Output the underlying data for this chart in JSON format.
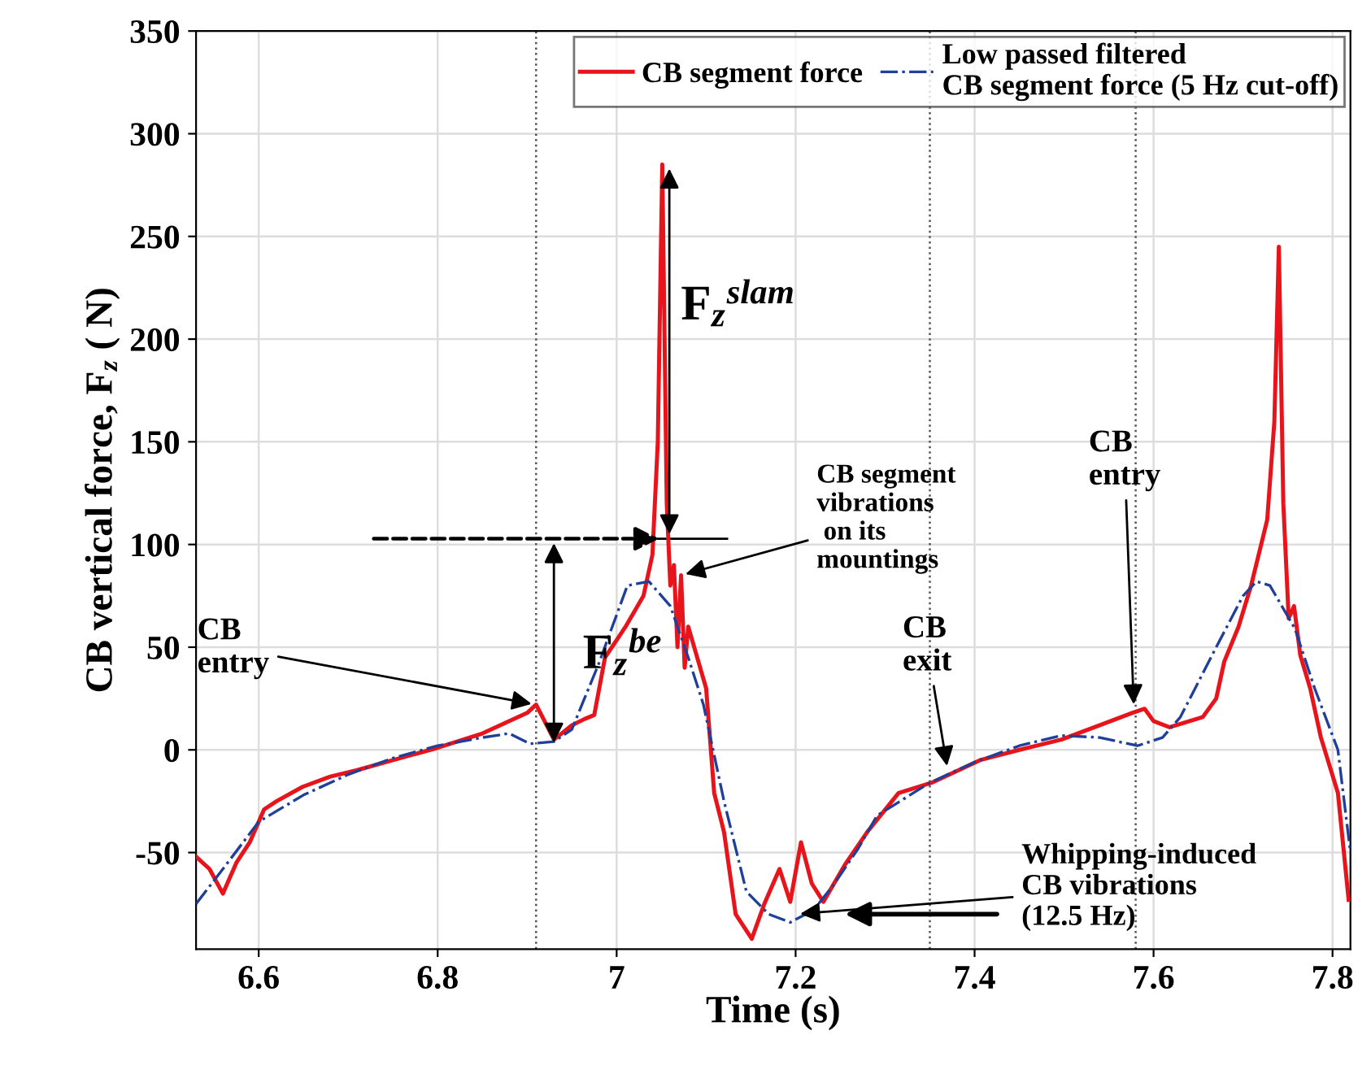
{
  "chart_data": {
    "type": "line",
    "xlabel": "Time (s)",
    "ylabel": "CB vertical force, F$_{z}$ ( N)",
    "xlim": [
      6.53,
      7.82
    ],
    "ylim": [
      -97,
      350
    ],
    "xticks": [
      6.6,
      6.8,
      7,
      7.2,
      7.4,
      7.6,
      7.8
    ],
    "yticks": [
      -50,
      0,
      50,
      100,
      150,
      200,
      250,
      300,
      350
    ],
    "grid": true,
    "legend": "top right",
    "series": [
      {
        "name": "CB segment force",
        "color": "#e8141c",
        "line_style": "solid",
        "x": [
          6.53,
          6.545,
          6.56,
          6.575,
          6.59,
          6.606,
          6.62,
          6.649,
          6.68,
          6.709,
          6.75,
          6.8,
          6.85,
          6.9,
          6.91,
          6.93,
          6.95,
          6.964,
          6.975,
          6.987,
          7.01,
          7.03,
          7.04,
          7.046,
          7.051,
          7.056,
          7.06,
          7.064,
          7.068,
          7.072,
          7.076,
          7.08,
          7.09,
          7.1,
          7.109,
          7.12,
          7.133,
          7.151,
          7.165,
          7.182,
          7.194,
          7.206,
          7.218,
          7.231,
          7.255,
          7.28,
          7.315,
          7.352,
          7.406,
          7.45,
          7.497,
          7.54,
          7.576,
          7.59,
          7.6,
          7.618,
          7.655,
          7.67,
          7.679,
          7.695,
          7.709,
          7.727,
          7.735,
          7.74,
          7.745,
          7.751,
          7.757,
          7.764,
          7.775,
          7.787,
          7.806,
          7.818
        ],
        "values": [
          -52,
          -58,
          -70,
          -55,
          -45,
          -29,
          -25,
          -18,
          -13,
          -10,
          -5,
          1,
          8,
          18,
          22,
          5,
          12,
          15,
          17,
          45,
          60,
          75,
          95,
          150,
          285,
          120,
          80,
          90,
          50,
          85,
          40,
          60,
          45,
          30,
          -21,
          -40,
          -80,
          -92,
          -75,
          -58,
          -74,
          -45,
          -65,
          -74,
          -56,
          -40,
          -21,
          -16,
          -5,
          0,
          5,
          12,
          18,
          20,
          14,
          11,
          16,
          25,
          43,
          60,
          80,
          112,
          160,
          245,
          120,
          64,
          70,
          46,
          30,
          6,
          -21,
          -73
        ]
      },
      {
        "name": "Low passed filtered\nCB segment force (5 Hz cut-off)",
        "color": "#1f3f9a",
        "line_style": "dashdot",
        "x": [
          6.53,
          6.56,
          6.6,
          6.65,
          6.7,
          6.75,
          6.8,
          6.85,
          6.88,
          6.903,
          6.93,
          6.95,
          6.98,
          7.012,
          7.036,
          7.06,
          7.08,
          7.097,
          7.12,
          7.145,
          7.17,
          7.194,
          7.22,
          7.242,
          7.27,
          7.291,
          7.35,
          7.4,
          7.45,
          7.497,
          7.54,
          7.582,
          7.61,
          7.63,
          7.67,
          7.7,
          7.715,
          7.73,
          7.758,
          7.78,
          7.806,
          7.82
        ],
        "values": [
          -75,
          -58,
          -35,
          -22,
          -12,
          -4,
          2,
          6,
          8,
          3,
          4,
          10,
          42,
          80,
          82,
          70,
          45,
          22,
          -25,
          -69,
          -80,
          -84,
          -78,
          -66,
          -48,
          -32,
          -16,
          -6,
          2,
          7,
          6,
          2,
          6,
          16,
          50,
          75,
          82,
          80,
          59,
          30,
          0,
          -50
        ]
      }
    ],
    "ref_lines": [
      {
        "axis": "x",
        "value": 6.91,
        "line_style": "dotted",
        "color": "#555555"
      },
      {
        "axis": "x",
        "value": 7.35,
        "line_style": "dotted",
        "color": "#555555"
      },
      {
        "axis": "x",
        "value": 7.58,
        "line_style": "dotted",
        "color": "#555555"
      }
    ],
    "annotations": [
      {
        "text": "CB\nentry",
        "x": 6.91,
        "y": 22
      },
      "F$_{z}$$^{be}$",
      "F$_{z}$$^{slam}$",
      {
        "text": "CB segment\nvibrations\n on its\nmountings",
        "x": 7.072,
        "y": 85
      },
      {
        "text": "CB\nexit",
        "x": 7.37,
        "y": -10
      },
      {
        "text": "CB\nentry",
        "x": 7.578,
        "y": 20
      },
      {
        "text": "Whipping-induced\nCB vibrations\n(12.5 Hz)",
        "x": 7.2,
        "y": -80
      }
    ]
  }
}
